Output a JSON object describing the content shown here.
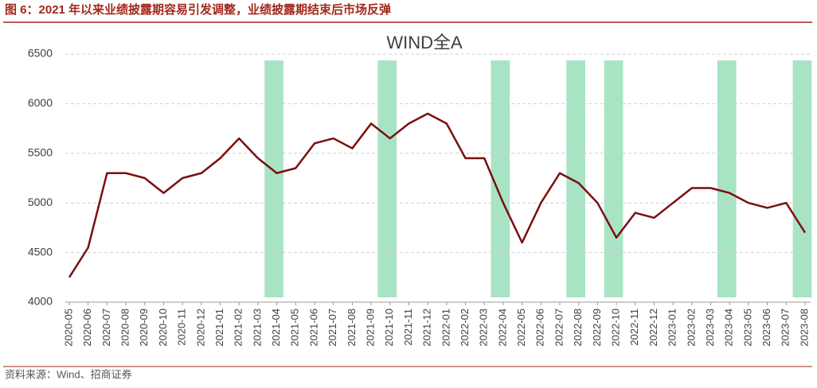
{
  "header": "图 6：2021 年以来业绩披露期容易引发调整，业绩披露期结束后市场反弹",
  "source": "资料来源：Wind、招商证券",
  "chart_data": {
    "type": "line",
    "title": "WIND全A",
    "x": [
      "2020-05",
      "2020-06",
      "2020-07",
      "2020-08",
      "2020-09",
      "2020-10",
      "2020-11",
      "2020-12",
      "2021-01",
      "2021-02",
      "2021-03",
      "2021-04",
      "2021-05",
      "2021-06",
      "2021-07",
      "2021-08",
      "2021-09",
      "2021-10",
      "2021-11",
      "2021-12",
      "2022-01",
      "2022-02",
      "2022-03",
      "2022-04",
      "2022-05",
      "2022-06",
      "2022-07",
      "2022-08",
      "2022-09",
      "2022-10",
      "2022-11",
      "2022-12",
      "2023-01",
      "2023-02",
      "2023-03",
      "2023-04",
      "2023-05",
      "2023-06",
      "2023-07",
      "2023-08"
    ],
    "values": [
      4250,
      4550,
      5300,
      5300,
      5250,
      5100,
      5250,
      5300,
      5450,
      5650,
      5450,
      5300,
      5350,
      5600,
      5650,
      5550,
      5800,
      5650,
      5800,
      5900,
      5800,
      5450,
      5450,
      5000,
      4600,
      5000,
      5300,
      5200,
      5000,
      4650,
      4900,
      4850,
      5000,
      5150,
      5150,
      5100,
      5000,
      4950,
      5000,
      4700
    ],
    "color": "#7b0f0f",
    "shaded_periods": [
      [
        "2021-03",
        "2021-04"
      ],
      [
        "2021-09",
        "2021-10"
      ],
      [
        "2022-03",
        "2022-04"
      ],
      [
        "2022-07",
        "2022-08"
      ],
      [
        "2022-09",
        "2022-10"
      ],
      [
        "2023-03",
        "2023-04"
      ],
      [
        "2023-07",
        "2023-08"
      ]
    ],
    "shade_color": "#a8e4c4",
    "ylim": [
      4000,
      6500
    ],
    "yticks": [
      4000,
      4500,
      5000,
      5500,
      6000,
      6500
    ],
    "grid": true
  }
}
